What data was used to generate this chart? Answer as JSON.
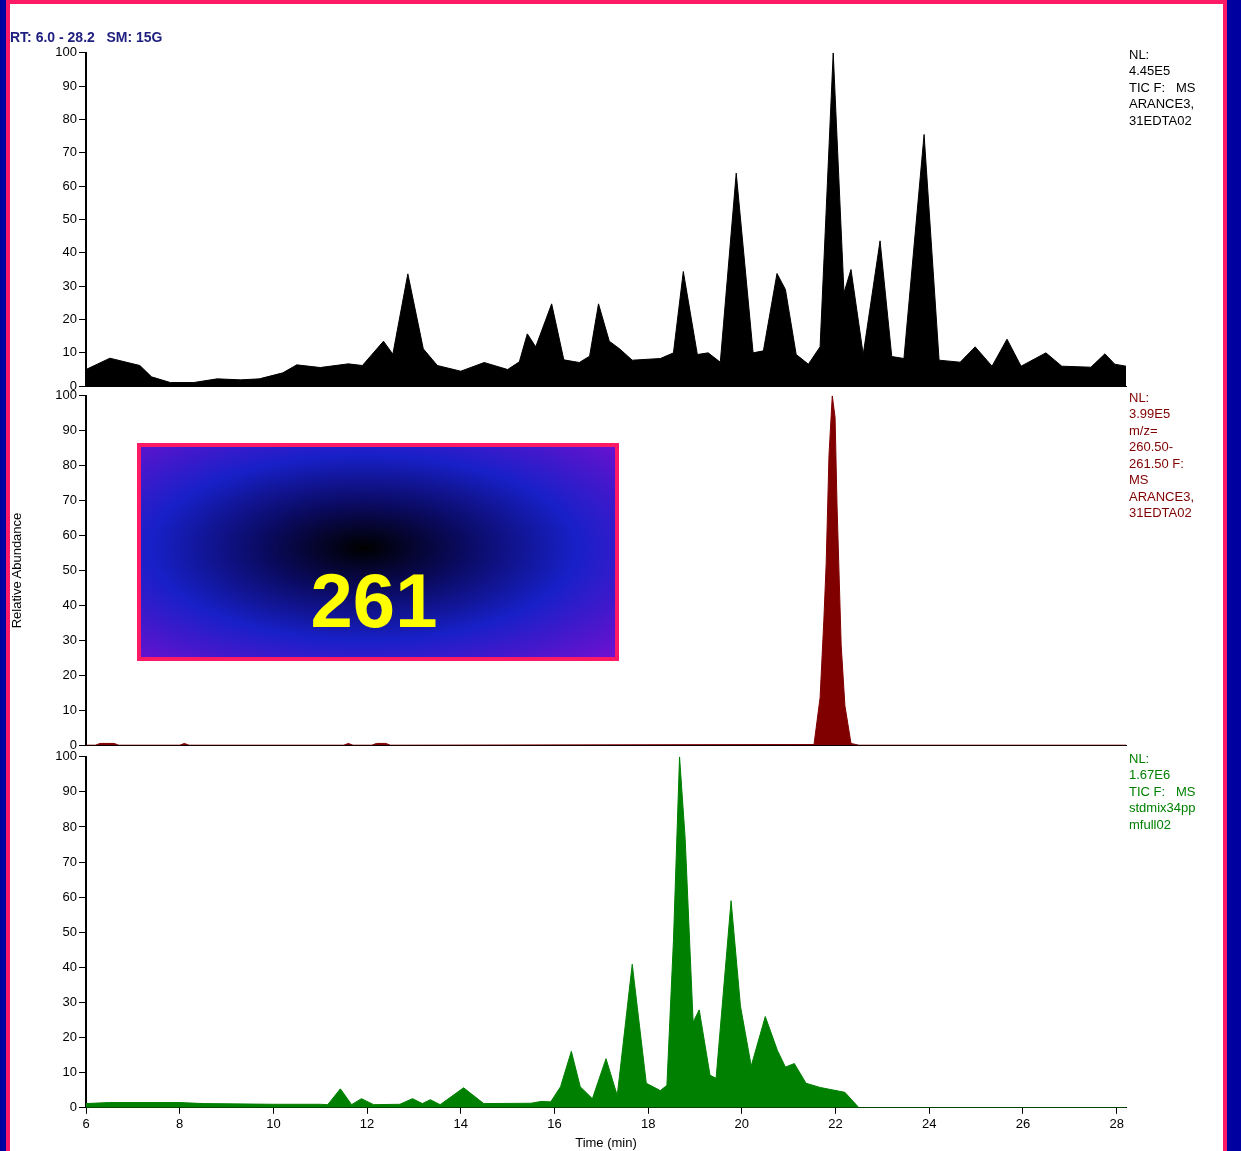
{
  "chart_data": [
    {
      "type": "area",
      "title": "RT: 6.0 - 28.2   SM: 15G",
      "annotations": [
        "NL:",
        "4.45E5",
        "TIC F:   MS",
        "ARANCE3,",
        "31EDTA02"
      ],
      "xlim": [
        6,
        28.2
      ],
      "ylim": [
        0,
        100
      ],
      "yticks": [
        0,
        10,
        20,
        30,
        40,
        50,
        60,
        70,
        80,
        90,
        100
      ],
      "tick_labels": "y",
      "legend": false,
      "marker": "none",
      "series": [
        {
          "color": "#000000",
          "x": [
            6.0,
            6.51,
            7.15,
            7.4,
            7.8,
            8.3,
            8.8,
            9.3,
            9.7,
            10.2,
            10.5,
            11.0,
            11.6,
            11.9,
            12.35,
            12.55,
            12.87,
            13.2,
            13.5,
            14.0,
            14.5,
            15.0,
            15.25,
            15.42,
            15.6,
            15.94,
            16.2,
            16.53,
            16.75,
            16.94,
            17.17,
            17.39,
            17.66,
            18.26,
            18.54,
            18.75,
            19.05,
            19.28,
            19.54,
            19.88,
            20.24,
            20.46,
            20.75,
            20.93,
            21.16,
            21.42,
            21.67,
            21.95,
            22.18,
            22.33,
            22.59,
            22.95,
            23.2,
            23.46,
            23.89,
            24.21,
            24.66,
            24.98,
            25.34,
            25.66,
            25.96,
            26.49,
            26.83,
            27.45,
            27.75,
            27.96,
            28.2
          ],
          "values": [
            5,
            8.4,
            6.2,
            2.8,
            1.1,
            1.1,
            2.2,
            1.9,
            2.2,
            4,
            6.4,
            5.6,
            6.7,
            6.2,
            13.5,
            9.6,
            33.7,
            11.2,
            6.2,
            4.5,
            7.1,
            5,
            7.3,
            15.7,
            11.8,
            24.7,
            7.9,
            7.1,
            9,
            24.7,
            13.5,
            11.2,
            7.8,
            8.3,
            10,
            34.4,
            9.5,
            10,
            7.2,
            63.9,
            10,
            10.6,
            33.8,
            29,
            9.5,
            6.6,
            11.8,
            100,
            28,
            35,
            9.5,
            43.6,
            8.9,
            8.3,
            75.5,
            7.8,
            7.2,
            11.8,
            6,
            14.1,
            6,
            10,
            6,
            5.7,
            9.7,
            6.6,
            6
          ]
        }
      ]
    },
    {
      "type": "area",
      "title": "261",
      "ylabel": "Relative Abundance",
      "annotations": [
        "NL:",
        "3.99E5",
        "m/z=",
        "260.50-",
        "261.50 F:",
        "MS",
        "ARANCE3,",
        "31EDTA02"
      ],
      "xlim": [
        6,
        28.2
      ],
      "ylim": [
        0,
        100
      ],
      "yticks": [
        0,
        10,
        20,
        30,
        40,
        50,
        60,
        70,
        80,
        90,
        100
      ],
      "tick_labels": "y",
      "legend": false,
      "marker": "none",
      "series": [
        {
          "color": "#800000",
          "x": [
            6.0,
            6.2,
            6.3,
            6.6,
            6.7,
            6.9,
            8.0,
            8.1,
            8.2,
            11.5,
            11.6,
            11.7,
            12.1,
            12.2,
            12.4,
            12.5,
            21.54,
            21.67,
            21.75,
            21.8,
            21.86,
            21.93,
            21.99,
            22.03,
            22.12,
            22.2,
            22.33,
            22.5,
            28.2
          ],
          "values": [
            0,
            0,
            0.5,
            0.5,
            0,
            0,
            0,
            0.5,
            0,
            0,
            0.5,
            0,
            0,
            0.5,
            0.5,
            0,
            0.2,
            13.6,
            35.7,
            52,
            83,
            100,
            93.8,
            69.4,
            28.7,
            11.3,
            0.5,
            0,
            0
          ]
        }
      ]
    },
    {
      "type": "area",
      "xlabel": "Time (min)",
      "annotations": [
        "NL:",
        "1.67E6",
        "TIC F:   MS",
        "stdmix34pp",
        "mfull02"
      ],
      "xlim": [
        6,
        28.2
      ],
      "ylim": [
        0,
        100
      ],
      "xticks": [
        6,
        8,
        10,
        12,
        14,
        16,
        18,
        20,
        22,
        24,
        26,
        28
      ],
      "yticks": [
        0,
        10,
        20,
        30,
        40,
        50,
        60,
        70,
        80,
        90,
        100
      ],
      "legend": false,
      "marker": "none",
      "series": [
        {
          "color": "#008000",
          "x": [
            6.0,
            6.5,
            8.0,
            8.5,
            10.0,
            11.0,
            11.16,
            11.43,
            11.67,
            11.88,
            12.14,
            12.7,
            12.97,
            13.18,
            13.35,
            13.56,
            14.06,
            14.49,
            15.5,
            15.71,
            15.92,
            16.13,
            16.36,
            16.55,
            16.81,
            17.1,
            17.34,
            17.66,
            17.96,
            18.26,
            18.4,
            18.54,
            18.67,
            18.79,
            18.96,
            19.09,
            19.32,
            19.45,
            19.77,
            19.97,
            20.2,
            20.5,
            20.76,
            20.93,
            21.12,
            21.37,
            21.67,
            22.2,
            22.5,
            28.2
          ],
          "values": [
            1.2,
            1.5,
            1.5,
            1.2,
            1,
            1,
            0.9,
            5.4,
            0.9,
            2.6,
            0.9,
            1,
            2.6,
            1.2,
            2.3,
            0.9,
            5.7,
            1.2,
            1.3,
            1.8,
            1.7,
            6,
            16.1,
            6,
            2.6,
            14,
            3.5,
            40.9,
            7,
            4.9,
            6.4,
            47.7,
            100,
            76.7,
            24.4,
            27.9,
            9.3,
            8.4,
            59,
            29,
            11.9,
            26,
            16.3,
            11.6,
            12.6,
            7,
            5.8,
            4.4,
            0,
            0
          ]
        }
      ]
    }
  ]
}
